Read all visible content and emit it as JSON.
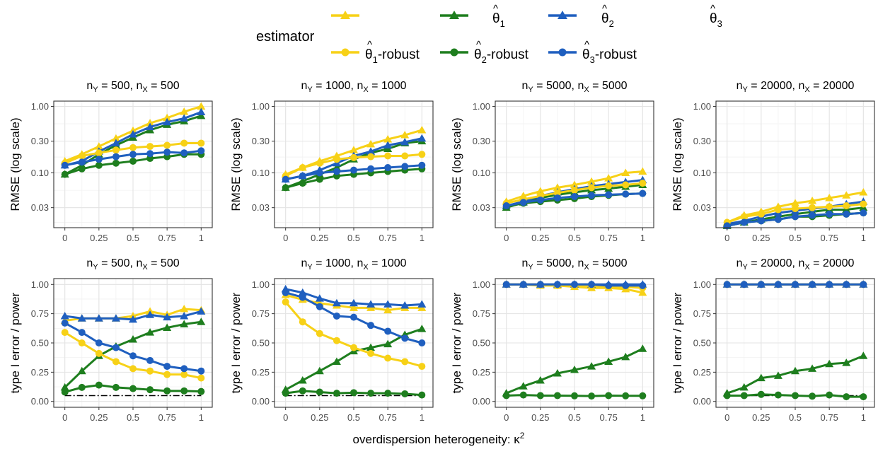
{
  "legend": {
    "title": "estimator",
    "items": [
      {
        "label": "θ̂1",
        "sub": "1",
        "color": "#F7D117",
        "shape": "triangle"
      },
      {
        "label": "θ̂2",
        "sub": "2",
        "color": "#1E7E1E",
        "shape": "triangle"
      },
      {
        "label": "θ̂3",
        "sub": "3",
        "color": "#1F5FBF",
        "shape": "triangle"
      },
      {
        "label": "θ̂1-robust",
        "sub": "1",
        "suffix": "-robust",
        "color": "#F7D117",
        "shape": "circle"
      },
      {
        "label": "θ̂2-robust",
        "sub": "2",
        "suffix": "-robust",
        "color": "#1E7E1E",
        "shape": "circle"
      },
      {
        "label": "θ̂3-robust",
        "sub": "3",
        "suffix": "-robust",
        "color": "#1F5FBF",
        "shape": "circle"
      }
    ]
  },
  "xlabel": "overdispersion heterogeneity: κ2",
  "rows": [
    {
      "ylabel": "RMSE (log scale)",
      "scale": "log",
      "ylim": [
        0.015,
        1.2
      ],
      "ticks": [
        0.03,
        0.1,
        0.3,
        1.0
      ],
      "tick_labels": [
        "0.03",
        "0.10",
        "0.30",
        "1.00"
      ],
      "ref_line": null
    },
    {
      "ylabel": "type I error / power",
      "scale": "linear",
      "ylim": [
        -0.05,
        1.05
      ],
      "ticks": [
        0,
        0.25,
        0.5,
        0.75,
        1.0
      ],
      "tick_labels": [
        "0.00",
        "0.25",
        "0.50",
        "0.75",
        "1.00"
      ],
      "ref_line": 0.05
    }
  ],
  "x_ticks": [
    0,
    0.25,
    0.5,
    0.75,
    1
  ],
  "x_tick_labels": [
    "0",
    "0.25",
    "0.5",
    "0.75",
    "1"
  ],
  "panel_titles": [
    {
      "nY": "500",
      "nX": "500",
      "text": "nY = 500, nX = 500"
    },
    {
      "nY": "1000",
      "nX": "1000",
      "text": "nY = 1000, nX = 1000"
    },
    {
      "nY": "5000",
      "nX": "5000",
      "text": "nY = 5000, nX = 5000"
    },
    {
      "nY": "20000",
      "nX": "20000",
      "text": "nY = 20000, nX = 20000"
    }
  ],
  "chart_data": {
    "type": "line",
    "x": [
      0,
      0.125,
      0.25,
      0.375,
      0.5,
      0.625,
      0.75,
      0.875,
      1
    ],
    "series_order": [
      "θ̂1",
      "θ̂2",
      "θ̂3",
      "θ̂1-robust",
      "θ̂2-robust",
      "θ̂3-robust"
    ],
    "panels": [
      {
        "row": 0,
        "col": 0,
        "series": [
          [
            0.15,
            0.19,
            0.25,
            0.33,
            0.43,
            0.56,
            0.67,
            0.83,
            1.0
          ],
          [
            0.095,
            0.13,
            0.19,
            0.26,
            0.34,
            0.44,
            0.53,
            0.6,
            0.72
          ],
          [
            0.13,
            0.15,
            0.21,
            0.28,
            0.38,
            0.49,
            0.58,
            0.66,
            0.82
          ],
          [
            0.14,
            0.18,
            0.2,
            0.22,
            0.24,
            0.25,
            0.26,
            0.28,
            0.28
          ],
          [
            0.095,
            0.115,
            0.13,
            0.14,
            0.15,
            0.165,
            0.175,
            0.19,
            0.19
          ],
          [
            0.13,
            0.145,
            0.16,
            0.175,
            0.19,
            0.195,
            0.205,
            0.2,
            0.215
          ]
        ]
      },
      {
        "row": 0,
        "col": 1,
        "series": [
          [
            0.095,
            0.12,
            0.15,
            0.18,
            0.22,
            0.27,
            0.32,
            0.37,
            0.44
          ],
          [
            0.06,
            0.075,
            0.095,
            0.12,
            0.16,
            0.2,
            0.23,
            0.28,
            0.3
          ],
          [
            0.08,
            0.09,
            0.11,
            0.14,
            0.18,
            0.21,
            0.26,
            0.29,
            0.33
          ],
          [
            0.09,
            0.12,
            0.14,
            0.16,
            0.17,
            0.175,
            0.18,
            0.18,
            0.19
          ],
          [
            0.06,
            0.07,
            0.08,
            0.09,
            0.095,
            0.1,
            0.105,
            0.11,
            0.115
          ],
          [
            0.08,
            0.09,
            0.1,
            0.105,
            0.11,
            0.115,
            0.12,
            0.125,
            0.13
          ]
        ]
      },
      {
        "row": 0,
        "col": 2,
        "series": [
          [
            0.037,
            0.045,
            0.053,
            0.06,
            0.066,
            0.074,
            0.083,
            0.1,
            0.105
          ],
          [
            0.03,
            0.036,
            0.042,
            0.047,
            0.051,
            0.055,
            0.058,
            0.062,
            0.066
          ],
          [
            0.032,
            0.037,
            0.045,
            0.051,
            0.057,
            0.063,
            0.068,
            0.073,
            0.078
          ],
          [
            0.035,
            0.04,
            0.045,
            0.05,
            0.055,
            0.06,
            0.064,
            0.066,
            0.07
          ],
          [
            0.031,
            0.035,
            0.037,
            0.039,
            0.041,
            0.044,
            0.046,
            0.048,
            0.049
          ],
          [
            0.032,
            0.036,
            0.039,
            0.042,
            0.044,
            0.046,
            0.047,
            0.048,
            0.049
          ]
        ]
      },
      {
        "row": 0,
        "col": 3,
        "series": [
          [
            0.018,
            0.023,
            0.026,
            0.031,
            0.035,
            0.038,
            0.042,
            0.046,
            0.051
          ],
          [
            0.016,
            0.018,
            0.02,
            0.022,
            0.024,
            0.026,
            0.028,
            0.028,
            0.03
          ],
          [
            0.017,
            0.019,
            0.022,
            0.025,
            0.027,
            0.029,
            0.031,
            0.034,
            0.037
          ],
          [
            0.018,
            0.022,
            0.024,
            0.028,
            0.029,
            0.03,
            0.031,
            0.032,
            0.034
          ],
          [
            0.016,
            0.018,
            0.019,
            0.02,
            0.022,
            0.022,
            0.023,
            0.024,
            0.025
          ],
          [
            0.016,
            0.018,
            0.019,
            0.02,
            0.022,
            0.023,
            0.024,
            0.024,
            0.025
          ]
        ]
      },
      {
        "row": 1,
        "col": 0,
        "series": [
          [
            0.69,
            0.71,
            0.71,
            0.71,
            0.73,
            0.77,
            0.74,
            0.79,
            0.78
          ],
          [
            0.12,
            0.26,
            0.39,
            0.47,
            0.53,
            0.59,
            0.63,
            0.66,
            0.68
          ],
          [
            0.73,
            0.71,
            0.71,
            0.71,
            0.7,
            0.74,
            0.72,
            0.73,
            0.77
          ],
          [
            0.59,
            0.5,
            0.41,
            0.34,
            0.28,
            0.26,
            0.23,
            0.23,
            0.2
          ],
          [
            0.08,
            0.12,
            0.14,
            0.12,
            0.11,
            0.1,
            0.09,
            0.09,
            0.085
          ],
          [
            0.67,
            0.59,
            0.5,
            0.46,
            0.39,
            0.35,
            0.3,
            0.28,
            0.26
          ]
        ]
      },
      {
        "row": 1,
        "col": 1,
        "series": [
          [
            0.91,
            0.87,
            0.84,
            0.82,
            0.8,
            0.8,
            0.78,
            0.8,
            0.8
          ],
          [
            0.1,
            0.18,
            0.26,
            0.34,
            0.43,
            0.46,
            0.49,
            0.57,
            0.62
          ],
          [
            0.96,
            0.93,
            0.88,
            0.84,
            0.84,
            0.83,
            0.83,
            0.82,
            0.83
          ],
          [
            0.85,
            0.68,
            0.58,
            0.52,
            0.46,
            0.41,
            0.37,
            0.34,
            0.3
          ],
          [
            0.07,
            0.09,
            0.08,
            0.07,
            0.075,
            0.07,
            0.07,
            0.065,
            0.055
          ],
          [
            0.93,
            0.89,
            0.81,
            0.73,
            0.72,
            0.65,
            0.6,
            0.54,
            0.5
          ]
        ]
      },
      {
        "row": 1,
        "col": 2,
        "series": [
          [
            1.0,
            1.0,
            0.99,
            0.99,
            0.98,
            0.97,
            0.97,
            0.96,
            0.93
          ],
          [
            0.07,
            0.13,
            0.18,
            0.24,
            0.27,
            0.3,
            0.34,
            0.38,
            0.45
          ],
          [
            1.0,
            1.0,
            1.0,
            1.0,
            1.0,
            1.0,
            1.0,
            1.0,
            1.0
          ],
          [
            1.0,
            1.0,
            1.0,
            0.99,
            0.99,
            0.99,
            0.98,
            0.98,
            0.97
          ],
          [
            0.05,
            0.055,
            0.05,
            0.05,
            0.048,
            0.046,
            0.05,
            0.048,
            0.048
          ],
          [
            1.0,
            1.0,
            1.0,
            1.0,
            1.0,
            1.0,
            0.99,
            0.99,
            0.99
          ]
        ]
      },
      {
        "row": 1,
        "col": 3,
        "series": [
          [
            1.0,
            1.0,
            1.0,
            1.0,
            1.0,
            1.0,
            1.0,
            1.0,
            1.0
          ],
          [
            0.07,
            0.12,
            0.2,
            0.22,
            0.26,
            0.28,
            0.32,
            0.33,
            0.39
          ],
          [
            1.0,
            1.0,
            1.0,
            1.0,
            1.0,
            1.0,
            1.0,
            1.0,
            1.0
          ],
          [
            1.0,
            1.0,
            1.0,
            1.0,
            1.0,
            1.0,
            1.0,
            1.0,
            1.0
          ],
          [
            0.05,
            0.05,
            0.06,
            0.055,
            0.05,
            0.045,
            0.055,
            0.04,
            0.04
          ],
          [
            1.0,
            1.0,
            1.0,
            1.0,
            1.0,
            1.0,
            1.0,
            1.0,
            1.0
          ]
        ]
      }
    ]
  }
}
